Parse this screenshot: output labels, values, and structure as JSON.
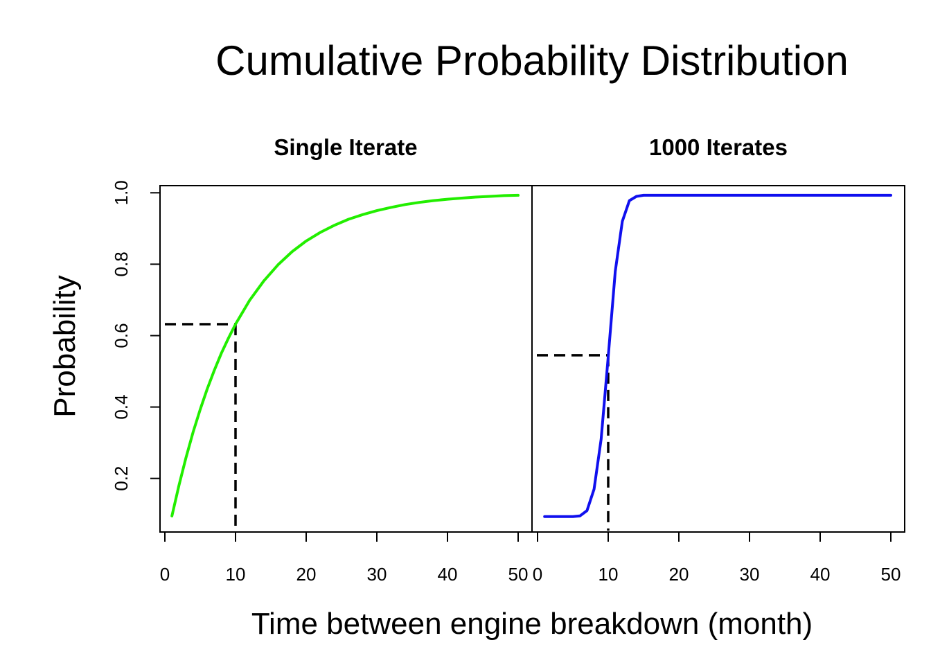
{
  "figure": {
    "title": "Cumulative Probability Distribution",
    "xlabel": "Time between engine breakdown (month)",
    "ylabel": "Probability"
  },
  "chart_data": [
    {
      "type": "line",
      "title": "Single Iterate",
      "xlim": [
        0,
        50
      ],
      "ylim": [
        0.05,
        1.02
      ],
      "x_ticks": [
        "0",
        "10",
        "20",
        "30",
        "40",
        "50"
      ],
      "y_ticks": [
        "0.2",
        "0.4",
        "0.6",
        "0.8",
        "1.0"
      ],
      "grid": false,
      "series": [
        {
          "color": "#22ee00",
          "x": [
            1,
            2,
            3,
            4,
            5,
            6,
            7,
            8,
            9,
            10,
            12,
            14,
            16,
            18,
            20,
            22,
            24,
            26,
            28,
            30,
            32,
            34,
            36,
            38,
            40,
            42,
            44,
            46,
            48,
            50
          ],
          "y": [
            0.095,
            0.181,
            0.259,
            0.33,
            0.393,
            0.451,
            0.503,
            0.551,
            0.593,
            0.632,
            0.699,
            0.753,
            0.798,
            0.835,
            0.865,
            0.889,
            0.909,
            0.926,
            0.939,
            0.95,
            0.959,
            0.967,
            0.973,
            0.978,
            0.982,
            0.985,
            0.988,
            0.99,
            0.992,
            0.993
          ]
        }
      ],
      "reference_line": {
        "x": 10,
        "y": 0.632,
        "style": "dashed",
        "color": "#000000"
      }
    },
    {
      "type": "line",
      "title": "1000 Iterates",
      "xlim": [
        0,
        50
      ],
      "ylim": [
        0.05,
        1.02
      ],
      "x_ticks": [
        "0",
        "10",
        "20",
        "30",
        "40",
        "50"
      ],
      "y_ticks": [
        "0.2",
        "0.4",
        "0.6",
        "0.8",
        "1.0"
      ],
      "grid": false,
      "series": [
        {
          "color": "#1010ee",
          "x": [
            1,
            2,
            3,
            4,
            5,
            6,
            7,
            8,
            9,
            10,
            11,
            12,
            13,
            14,
            15,
            20,
            30,
            40,
            50
          ],
          "y": [
            0.093,
            0.093,
            0.093,
            0.093,
            0.093,
            0.095,
            0.11,
            0.17,
            0.31,
            0.54,
            0.78,
            0.92,
            0.978,
            0.99,
            0.993,
            0.993,
            0.993,
            0.993,
            0.993
          ]
        }
      ],
      "reference_line": {
        "x": 10,
        "y": 0.545,
        "style": "dashed",
        "color": "#000000"
      }
    }
  ]
}
